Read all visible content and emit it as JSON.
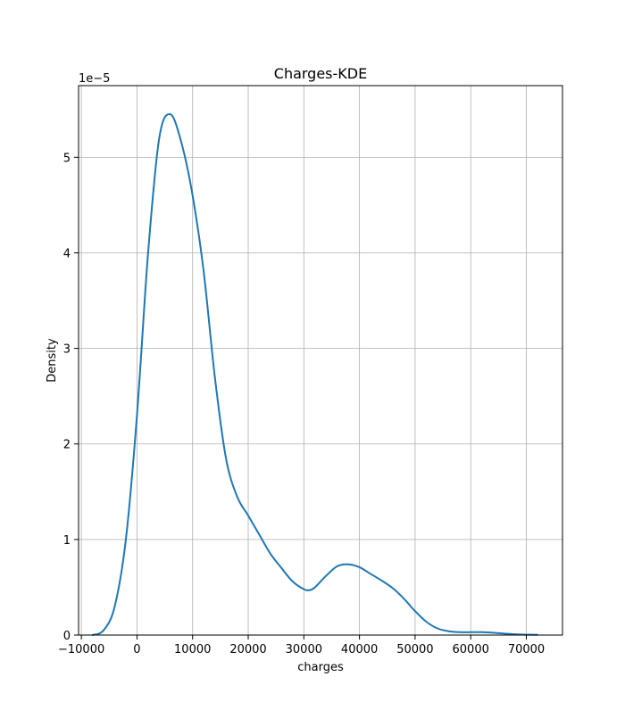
{
  "chart_data": {
    "type": "line",
    "title": "Charges-KDE",
    "xlabel": "charges",
    "ylabel": "Density",
    "y_offset_label": "1e−5",
    "xlim": [
      -10500,
      76500
    ],
    "ylim": [
      0,
      5.75
    ],
    "xticks": [
      -10000,
      0,
      10000,
      20000,
      30000,
      40000,
      50000,
      60000,
      70000
    ],
    "xtick_labels": [
      "−10000",
      "0",
      "10000",
      "20000",
      "30000",
      "40000",
      "50000",
      "60000",
      "70000"
    ],
    "yticks": [
      0,
      1,
      2,
      3,
      4,
      5
    ],
    "ytick_labels": [
      "0",
      "1",
      "2",
      "3",
      "4",
      "5"
    ],
    "grid": true,
    "line_color": "#1f77b4",
    "series": [
      {
        "x": [
          -8000,
          -6000,
          -4000,
          -2000,
          0,
          2000,
          4000,
          6000,
          8000,
          10000,
          12000,
          14000,
          16000,
          18000,
          20000,
          22000,
          24000,
          26000,
          28000,
          30000,
          31000,
          32000,
          34000,
          36000,
          38000,
          40000,
          42000,
          44000,
          46000,
          48000,
          50000,
          52000,
          54000,
          56000,
          58000,
          60000,
          62000,
          64000,
          66000,
          68000,
          70000,
          72000
        ],
        "y": [
          0.0,
          0.05,
          0.3,
          1.0,
          2.3,
          4.0,
          5.2,
          5.45,
          5.15,
          4.6,
          3.8,
          2.7,
          1.85,
          1.45,
          1.25,
          1.05,
          0.85,
          0.7,
          0.56,
          0.48,
          0.47,
          0.5,
          0.62,
          0.72,
          0.74,
          0.71,
          0.64,
          0.57,
          0.49,
          0.38,
          0.25,
          0.14,
          0.07,
          0.04,
          0.03,
          0.03,
          0.03,
          0.025,
          0.015,
          0.008,
          0.004,
          0.002
        ]
      }
    ]
  }
}
